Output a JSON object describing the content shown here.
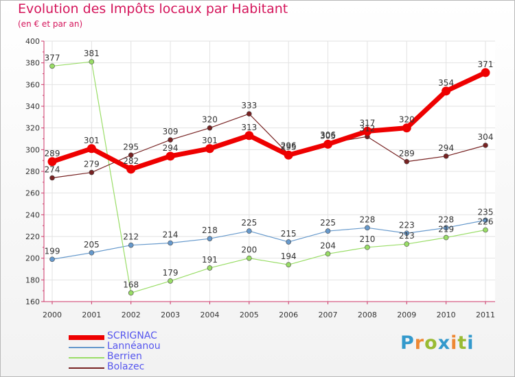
{
  "chart_data": {
    "type": "line",
    "title": "Evolution des Impôts locaux par Habitant",
    "subtitle": "(en € et par an)",
    "xlabel": "",
    "ylabel": "",
    "x": [
      "2000",
      "2001",
      "2002",
      "2003",
      "2004",
      "2005",
      "2006",
      "2007",
      "2008",
      "2009",
      "2010",
      "2011"
    ],
    "ylim": [
      160,
      400
    ],
    "yticks": [
      160,
      180,
      200,
      220,
      240,
      260,
      280,
      300,
      320,
      340,
      360,
      380,
      400
    ],
    "grid": true,
    "legend_position": "bottom-left",
    "series": [
      {
        "name": "SCRIGNAC",
        "color": "#ee0000",
        "values": [
          289,
          301,
          282,
          294,
          301,
          313,
          295,
          305,
          317,
          320,
          354,
          371
        ]
      },
      {
        "name": "Lannéanou",
        "color": "#6699cc",
        "values": [
          199,
          205,
          212,
          214,
          218,
          225,
          215,
          225,
          228,
          223,
          228,
          235
        ]
      },
      {
        "name": "Berrien",
        "color": "#99dd66",
        "values": [
          377,
          381,
          168,
          179,
          191,
          200,
          194,
          204,
          210,
          213,
          219,
          226
        ]
      },
      {
        "name": "Bolazec",
        "color": "#772222",
        "values": [
          274,
          279,
          295,
          309,
          320,
          333,
          296,
          306,
          312,
          289,
          294,
          304
        ]
      }
    ]
  },
  "logo": {
    "text": "Proxiti",
    "colors": [
      "#3399cc",
      "#ee8833",
      "#99bb33",
      "#3399cc",
      "#ee8833",
      "#99bb33",
      "#3399cc"
    ]
  }
}
